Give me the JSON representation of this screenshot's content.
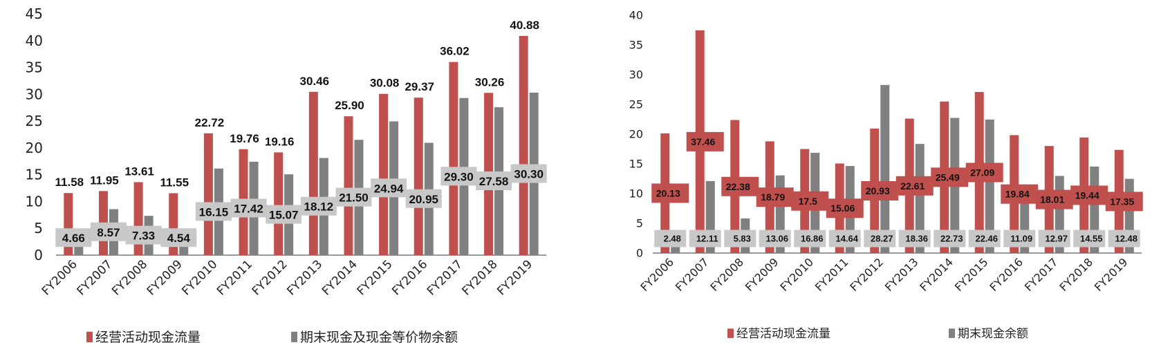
{
  "chart_data": [
    {
      "type": "bar",
      "categories": [
        "FY2006",
        "FY2007",
        "FY2008",
        "FY2009",
        "FY2010",
        "FY2011",
        "FY2012",
        "FY2013",
        "FY2014",
        "FY2015",
        "FY2016",
        "FY2017",
        "FY2018",
        "FY2019"
      ],
      "ylim": [
        0,
        45
      ],
      "yticks": [
        "0",
        "5",
        "10",
        "15",
        "20",
        "25",
        "30",
        "35",
        "40",
        "45"
      ],
      "grid": false,
      "legend_position": "bottom",
      "series": [
        {
          "name": "经营活动现金流量",
          "color": "#c0504d",
          "values": [
            11.58,
            11.95,
            13.61,
            11.55,
            22.72,
            19.76,
            19.16,
            30.46,
            25.9,
            30.08,
            29.37,
            36.02,
            30.26,
            40.88
          ],
          "labels": [
            "11.58",
            "11.95",
            "13.61",
            "11.55",
            "22.72",
            "19.76",
            "19.16",
            "30.46",
            "25.90",
            "30.08",
            "29.37",
            "36.02",
            "30.26",
            "40.88"
          ]
        },
        {
          "name": "期末现金及现金等价物余额",
          "color": "#808080",
          "values": [
            4.66,
            8.57,
            7.33,
            4.54,
            16.15,
            17.42,
            15.07,
            18.12,
            21.5,
            24.94,
            20.95,
            29.3,
            27.58,
            30.3
          ],
          "labels": [
            "4.66",
            "8.57",
            "7.33",
            "4.54",
            "16.15",
            "17.42",
            "15.07",
            "18.12",
            "21.50",
            "24.94",
            "20.95",
            "29.30",
            "27.58",
            "30.30"
          ]
        }
      ]
    },
    {
      "type": "bar",
      "categories": [
        "FY2006",
        "FY2007",
        "FY2008",
        "FY2009",
        "FY2010",
        "FY2011",
        "FY2012",
        "FY2013",
        "FY2014",
        "FY2015",
        "FY2016",
        "FY2017",
        "FY2018",
        "FY2019"
      ],
      "ylim": [
        0,
        40
      ],
      "yticks": [
        "0",
        "5",
        "10",
        "15",
        "20",
        "25",
        "30",
        "35",
        "40"
      ],
      "grid": false,
      "legend_position": "bottom",
      "series": [
        {
          "name": "经营活动现金流量",
          "color": "#c0504d",
          "values": [
            20.13,
            37.46,
            22.38,
            18.79,
            17.5,
            15.06,
            20.93,
            22.61,
            25.49,
            27.09,
            19.84,
            18.01,
            19.44,
            17.35
          ],
          "labels": [
            "20.13",
            "37.46",
            "22.38",
            "18.79",
            "17.5",
            "15.06",
            "20.93",
            "22.61",
            "25.49",
            "27.09",
            "19.84",
            "18.01",
            "19.44",
            "17.35"
          ]
        },
        {
          "name": "期末现金余额",
          "color": "#808080",
          "values": [
            2.48,
            12.11,
            5.83,
            13.06,
            16.86,
            14.64,
            28.27,
            18.36,
            22.73,
            22.46,
            11.09,
            12.97,
            14.55,
            12.48
          ],
          "labels": [
            "2.48",
            "12.11",
            "5.83",
            "13.06",
            "16.86",
            "14.64",
            "28.27",
            "18.36",
            "22.73",
            "22.46",
            "11.09",
            "12.97",
            "14.55",
            "12.48"
          ]
        }
      ]
    }
  ]
}
